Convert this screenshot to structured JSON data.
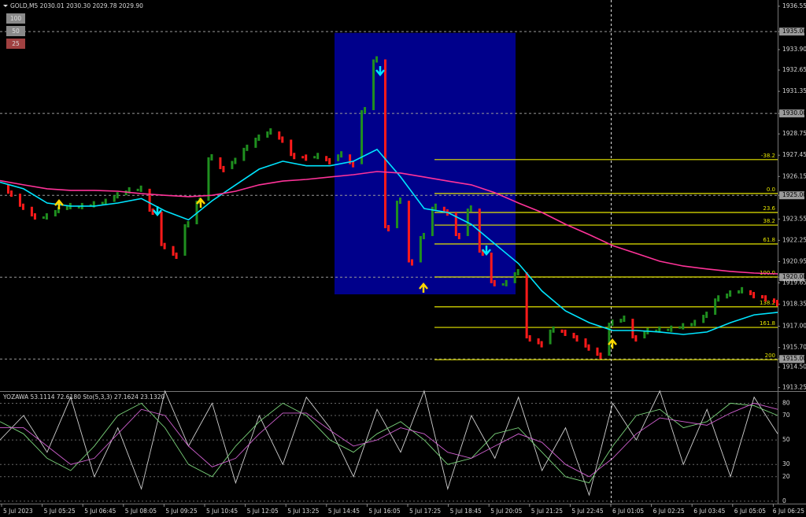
{
  "header": {
    "title": "GOLD,M5  2030.01 2030.30 2029.78 2029.90",
    "buttons": [
      "100",
      "50",
      "25"
    ]
  },
  "time_axis": [
    "5 Jul 2023",
    "5 Jul 05:25",
    "5 Jul 06:45",
    "5 Jul 08:05",
    "5 Jul 09:25",
    "5 Jul 10:45",
    "5 Jul 12:05",
    "5 Jul 13:25",
    "5 Jul 14:45",
    "5 Jul 16:05",
    "5 Jul 17:25",
    "5 Jul 18:45",
    "5 Jul 20:05",
    "5 Jul 21:25",
    "5 Jul 22:45",
    "6 Jul 01:05",
    "6 Jul 02:25",
    "6 Jul 03:45",
    "6 Jul 05:05",
    "6 Jul 06:25"
  ],
  "chart_data": [
    {
      "type": "price",
      "ylim": [
        1913.04,
        1936.93
      ],
      "yticks": [
        1936.55,
        {
          "value": 1935,
          "label": "1935.00"
        },
        {
          "value": 1933.9,
          "label": "1933.90"
        },
        1932.65,
        1931.35,
        {
          "value": 1930,
          "label": "1930.00"
        },
        1928.75,
        1927.45,
        1926.15,
        {
          "value": 1925,
          "label": "1925.00"
        },
        1923.55,
        1922.25,
        1920.95,
        {
          "value": 1920,
          "label": "1920.00"
        },
        1919.65,
        1918.35,
        {
          "value": 1917,
          "label": "1917.00"
        },
        {
          "value": 1915.7,
          "label": "1915.70"
        },
        {
          "value": 1915,
          "label": "1915.00"
        },
        {
          "value": 1914.5,
          "label": "1914.50"
        },
        1913.25
      ],
      "hlines": [
        1935,
        1930,
        1925,
        1920,
        1915
      ],
      "up_color": "#1f8f1f",
      "down_color": "#ff1a1a",
      "values": [
        1925.64,
        1925.1,
        1924.3,
        1923.71,
        1923.71,
        1924.1,
        1924.34,
        1924.34,
        1924.45,
        1924.6,
        1925.0,
        1925.3,
        1925.4,
        1924.0,
        1921.9,
        1921.31,
        1923.23,
        1924.67,
        1927.32,
        1926.6,
        1927.1,
        1927.9,
        1928.52,
        1928.9,
        1928.4,
        1927.4,
        1927.3,
        1927.4,
        1927.08,
        1927.5,
        1926.9,
        1930.2,
        1933.3,
        1922.99,
        1924.67,
        1920.9,
        1922.51,
        1924.3,
        1923.95,
        1922.51,
        1924.19,
        1921.5,
        1919.63,
        1919.63,
        1920.3,
        1916.26,
        1915.9,
        1916.8,
        1916.6,
        1916.26,
        1915.7,
        1915.2,
        1917.22,
        1917.46,
        1916.26,
        1916.7,
        1916.8,
        1916.85,
        1917.0,
        1917.2,
        1917.7,
        1918.7,
        1919.0,
        1919.2,
        1918.9,
        1918.7,
        1918.42
      ],
      "series": [
        {
          "color": "#00e5ff",
          "values": [
            1925.8,
            1925.4,
            1924.53,
            1924.34,
            1924.34,
            1924.53,
            1924.8,
            1924.05,
            1923.5,
            1924.67,
            1925.64,
            1926.6,
            1927.08,
            1926.8,
            1926.8,
            1927.08,
            1927.8,
            1926.12,
            1924.19,
            1923.95,
            1923.23,
            1922.03,
            1920.83,
            1919.15,
            1917.94,
            1917.22,
            1916.74,
            1916.74,
            1916.65,
            1916.5,
            1916.65,
            1917.22,
            1917.7,
            1917.85
          ]
        },
        {
          "color": "#ff3399",
          "values": [
            1925.9,
            1925.64,
            1925.4,
            1925.3,
            1925.3,
            1925.25,
            1925.1,
            1925.0,
            1924.92,
            1925.0,
            1925.25,
            1925.64,
            1925.87,
            1925.97,
            1926.12,
            1926.26,
            1926.45,
            1926.36,
            1926.12,
            1925.87,
            1925.64,
            1925.16,
            1924.53,
            1923.95,
            1923.23,
            1922.6,
            1921.93,
            1921.45,
            1920.97,
            1920.68,
            1920.5,
            1920.35,
            1920.25,
            1920.2
          ]
        }
      ],
      "fibo": {
        "color": "#e6e600",
        "levels": [
          {
            "label": "-38.2",
            "price": 1927.18
          },
          {
            "label": "0.0",
            "price": 1925.11
          },
          {
            "label": "23.6",
            "price": 1923.95
          },
          {
            "label": "38.2",
            "price": 1923.18
          },
          {
            "label": "61.8",
            "price": 1922.03
          },
          {
            "label": "100.0",
            "price": 1920.01
          },
          {
            "label": "138.2",
            "price": 1918.19
          },
          {
            "label": "161.8",
            "price": 1916.93
          },
          {
            "label": "200",
            "price": 1914.96
          }
        ]
      },
      "box": {
        "color": "#00008b",
        "top": 1934.92,
        "bottom": 1918.95
      }
    },
    {
      "type": "oscillator",
      "title": "YOZAWA 53.1114 72.6180  Sto(5,3,3) 27.1624 23.1320",
      "ylim": [
        -2,
        88
      ],
      "yticks": [
        0,
        20,
        30,
        50,
        70,
        80
      ],
      "grid": true,
      "series": [
        {
          "color": "#d0d0d0",
          "values": [
            50,
            70,
            40,
            85,
            20,
            60,
            10,
            90,
            45,
            80,
            15,
            70,
            30,
            85,
            60,
            20,
            75,
            40,
            90,
            10,
            70,
            35,
            85,
            25,
            60,
            5,
            80,
            50,
            90,
            30,
            75,
            20,
            85,
            55
          ]
        },
        {
          "color": "#7cd67c",
          "values": [
            65,
            55,
            35,
            25,
            45,
            70,
            80,
            60,
            30,
            20,
            45,
            65,
            80,
            70,
            50,
            40,
            55,
            65,
            50,
            30,
            35,
            55,
            60,
            40,
            20,
            15,
            45,
            70,
            75,
            60,
            65,
            80,
            78,
            70
          ]
        },
        {
          "color": "#d060d0",
          "values": [
            60,
            60,
            45,
            30,
            35,
            55,
            75,
            70,
            45,
            28,
            35,
            55,
            72,
            72,
            58,
            45,
            50,
            60,
            55,
            40,
            35,
            45,
            55,
            48,
            30,
            20,
            35,
            55,
            68,
            65,
            62,
            72,
            80,
            75
          ]
        }
      ]
    }
  ]
}
